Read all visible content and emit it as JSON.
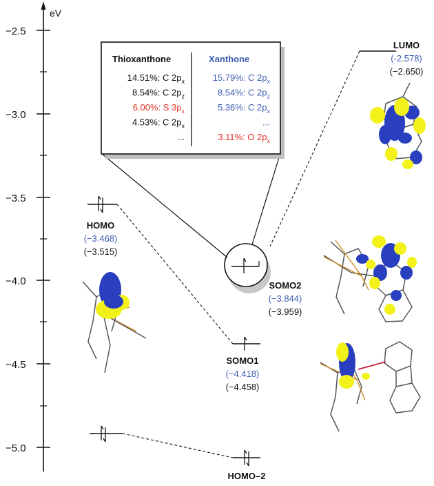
{
  "axis": {
    "unit": "eV",
    "ticks": [
      "−2.5",
      "−3.0",
      "−3.5",
      "−4.0",
      "−4.5",
      "−5.0"
    ]
  },
  "levels": {
    "lumo": {
      "name": "LUMO",
      "blue": "(-2.578)",
      "black": "(−2.650)"
    },
    "homo": {
      "name": "HOMO",
      "blue": "(−3.468)",
      "black": "(−3.515)"
    },
    "somo2": {
      "name": "SOMO2",
      "blue": "(−3.844)",
      "black": "(−3.959)"
    },
    "somo1": {
      "name": "SOMO1",
      "blue": "(−4.418)",
      "black": "(−4.458)"
    },
    "homo2": {
      "name": "HOMO–2"
    }
  },
  "table": {
    "left_header": "Thioxanthone",
    "right_header": "Xanthone",
    "left_rows": [
      {
        "pct": "14.51%: C 2p",
        "sub": "x",
        "red": false
      },
      {
        "pct": "8.54%: C 2p",
        "sub": "z",
        "red": false
      },
      {
        "pct": "6.00%: S 3p",
        "sub": "x",
        "red": true
      },
      {
        "pct": "4.53%: C 2p",
        "sub": "x",
        "red": false
      },
      {
        "pct": "...",
        "sub": "",
        "red": false
      }
    ],
    "right_rows": [
      {
        "pct": "15.79%: C 2p",
        "sub": "x",
        "red": false
      },
      {
        "pct": "8.54%: C 2p",
        "sub": "z",
        "red": false
      },
      {
        "pct": "5.36%: C 2p",
        "sub": "x",
        "red": false
      },
      {
        "pct": "...",
        "sub": "",
        "red": false
      },
      {
        "pct": "3.11%: O 2p",
        "sub": "x",
        "red": true
      }
    ]
  },
  "colors": {
    "blue_text": "#3a5bb0",
    "red_text": "#e0302a",
    "orbital_blue": "#2a3fc0",
    "orbital_yellow": "#f2f21a"
  }
}
